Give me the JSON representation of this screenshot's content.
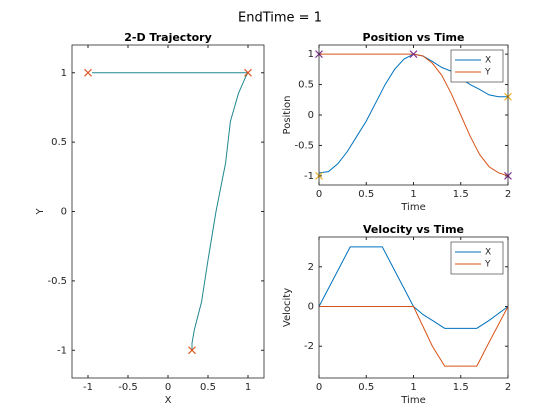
{
  "figure_title": "EndTime = 1",
  "chart_data": [
    {
      "type": "line",
      "title": "2-D Trajectory",
      "xlabel": "X",
      "ylabel": "Y",
      "xlim": [
        -1.2,
        1.2
      ],
      "ylim": [
        -1.2,
        1.2
      ],
      "xticks": [
        -1,
        -0.5,
        0,
        0.5,
        1
      ],
      "yticks": [
        -1,
        -0.5,
        0,
        0.5,
        1
      ],
      "series": [
        {
          "color": "#20878f",
          "x": [
            -0.95,
            -0.93,
            -0.8,
            -0.6,
            -0.35,
            -0.1,
            0.2,
            0.5,
            0.75,
            0.92,
            1.0,
            0.97,
            0.88,
            0.78,
            0.72,
            0.6,
            0.5,
            0.42,
            0.33,
            0.3,
            0.3
          ],
          "values": [
            1,
            1,
            1,
            1,
            1,
            1,
            1,
            1,
            1,
            1,
            1,
            0.97,
            0.85,
            0.65,
            0.35,
            0.0,
            -0.35,
            -0.65,
            -0.85,
            -0.95,
            -1
          ]
        },
        {
          "color": "#d95319",
          "marker": "x",
          "x": [
            -1,
            1,
            0.3
          ],
          "values": [
            1,
            1,
            -1
          ]
        }
      ]
    },
    {
      "type": "line",
      "title": "Position vs Time",
      "xlabel": "Time",
      "ylabel": "Position",
      "xlim": [
        0,
        2
      ],
      "ylim": [
        -1.15,
        1.15
      ],
      "xticks": [
        0,
        0.5,
        1,
        1.5,
        2
      ],
      "yticks": [
        -1,
        -0.5,
        0,
        0.5,
        1
      ],
      "legend": "northeast",
      "x": [
        0,
        0.1,
        0.2,
        0.3,
        0.4,
        0.5,
        0.6,
        0.7,
        0.8,
        0.9,
        1.0,
        1.1,
        1.2,
        1.3,
        1.4,
        1.5,
        1.6,
        1.7,
        1.8,
        1.9,
        2.0
      ],
      "series": [
        {
          "name": "X",
          "color": "#0072bd",
          "values": [
            -0.95,
            -0.93,
            -0.8,
            -0.6,
            -0.35,
            -0.1,
            0.2,
            0.5,
            0.75,
            0.92,
            1.0,
            0.97,
            0.88,
            0.78,
            0.72,
            0.6,
            0.5,
            0.42,
            0.33,
            0.3,
            0.3
          ]
        },
        {
          "name": "Y",
          "color": "#d95319",
          "values": [
            1,
            1,
            1,
            1,
            1,
            1,
            1,
            1,
            1,
            1,
            1,
            0.97,
            0.85,
            0.65,
            0.35,
            0.0,
            -0.35,
            -0.65,
            -0.85,
            -0.95,
            -1
          ]
        },
        {
          "color": "#7e2f8e",
          "marker": "x",
          "x": [
            0,
            1,
            2
          ],
          "values": [
            1,
            1,
            -1
          ]
        },
        {
          "color": "#edb120",
          "marker": "x",
          "x": [
            0,
            2
          ],
          "values": [
            -1,
            0.3
          ]
        }
      ]
    },
    {
      "type": "line",
      "title": "Velocity vs Time",
      "xlabel": "Time",
      "ylabel": "Velocity",
      "xlim": [
        0,
        2
      ],
      "ylim": [
        -3.6,
        3.5
      ],
      "xticks": [
        0,
        0.5,
        1,
        1.5,
        2
      ],
      "yticks": [
        -2,
        0,
        2
      ],
      "legend": "northeast",
      "x": [
        0,
        0.33,
        0.67,
        1,
        1.1,
        1.2,
        1.33,
        1.67,
        1.8,
        2
      ],
      "series": [
        {
          "name": "X",
          "color": "#0072bd",
          "values": [
            0,
            3,
            3,
            0,
            -0.4,
            -0.7,
            -1.1,
            -1.1,
            -0.7,
            0
          ]
        },
        {
          "name": "Y",
          "color": "#d95319",
          "values": [
            0,
            0,
            0,
            0,
            -1,
            -2,
            -3,
            -3,
            -1.8,
            0
          ]
        }
      ]
    }
  ]
}
